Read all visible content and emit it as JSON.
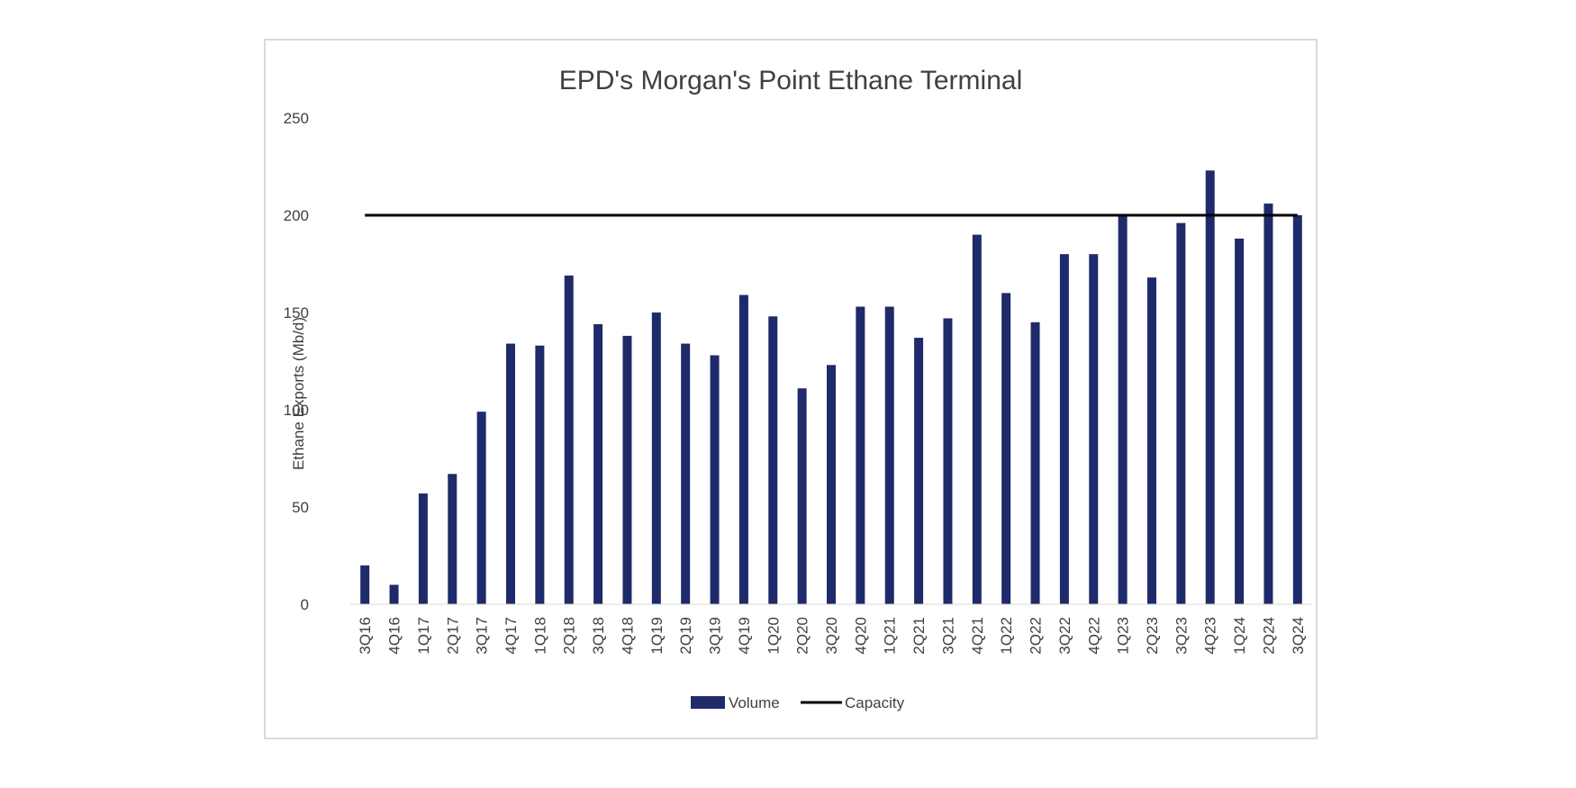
{
  "chart_data": {
    "type": "bar",
    "title": "EPD's Morgan's Point Ethane Terminal",
    "xlabel": "",
    "ylabel": "Ethane Exports (Mb/d)",
    "ylim": [
      0,
      250
    ],
    "yticks": [
      0,
      50,
      100,
      150,
      200,
      250
    ],
    "grid": false,
    "legend_position": "bottom",
    "categories": [
      "3Q16",
      "4Q16",
      "1Q17",
      "2Q17",
      "3Q17",
      "4Q17",
      "1Q18",
      "2Q18",
      "3Q18",
      "4Q18",
      "1Q19",
      "2Q19",
      "3Q19",
      "4Q19",
      "1Q20",
      "2Q20",
      "3Q20",
      "4Q20",
      "1Q21",
      "2Q21",
      "3Q21",
      "4Q21",
      "1Q22",
      "2Q22",
      "3Q22",
      "4Q22",
      "1Q23",
      "2Q23",
      "3Q23",
      "4Q23",
      "1Q24",
      "2Q24",
      "3Q24"
    ],
    "series": [
      {
        "name": "Volume",
        "kind": "bar",
        "color": "#1f2a6b",
        "values": [
          20,
          10,
          57,
          67,
          99,
          134,
          133,
          169,
          144,
          138,
          150,
          134,
          128,
          159,
          148,
          111,
          123,
          153,
          153,
          137,
          147,
          190,
          160,
          145,
          180,
          180,
          200,
          168,
          196,
          223,
          188,
          206,
          200
        ]
      },
      {
        "name": "Capacity",
        "kind": "line",
        "color": "#000000",
        "values": [
          200,
          200,
          200,
          200,
          200,
          200,
          200,
          200,
          200,
          200,
          200,
          200,
          200,
          200,
          200,
          200,
          200,
          200,
          200,
          200,
          200,
          200,
          200,
          200,
          200,
          200,
          200,
          200,
          200,
          200,
          200,
          200,
          200
        ]
      }
    ]
  }
}
